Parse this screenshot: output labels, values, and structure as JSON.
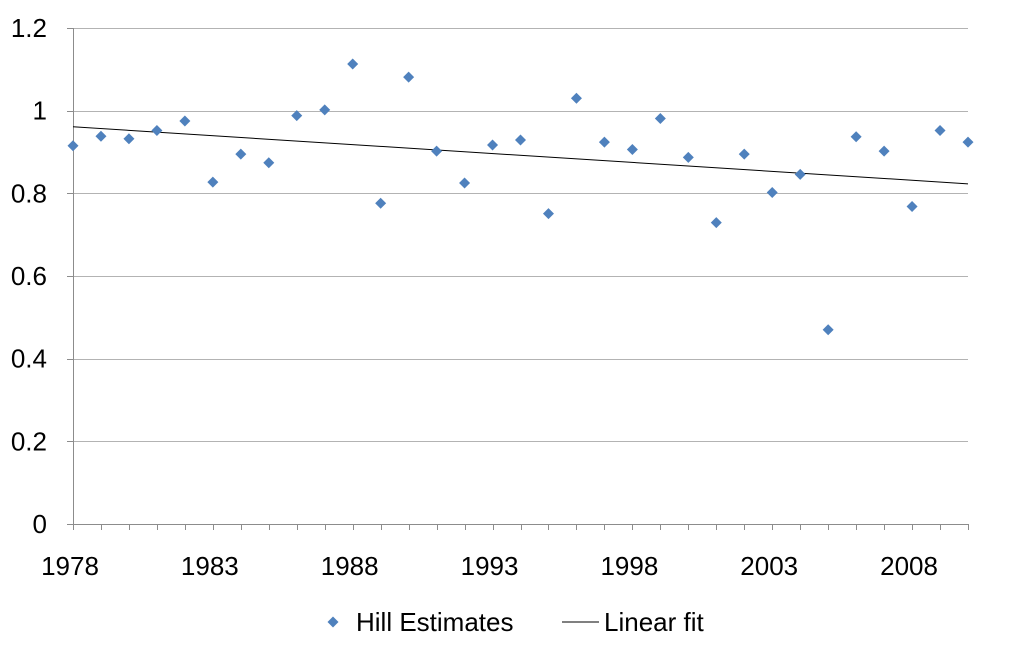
{
  "chart_data": {
    "type": "scatter",
    "title": "",
    "xlabel": "",
    "ylabel": "",
    "xlim": [
      1978,
      2010
    ],
    "ylim": [
      0,
      1.2
    ],
    "x_ticks": [
      1978,
      1983,
      1988,
      1993,
      1998,
      2003,
      2008
    ],
    "x_tick_labels": [
      "1978",
      "1983",
      "1988",
      "1993",
      "1998",
      "2003",
      "2008"
    ],
    "y_ticks": [
      0,
      0.2,
      0.4,
      0.6,
      0.8,
      1,
      1.2
    ],
    "y_tick_labels": [
      "0",
      "0.2",
      "0.4",
      "0.6",
      "0.8",
      "1",
      "1.2"
    ],
    "grid": "horizontal",
    "legend_position": "bottom",
    "series": [
      {
        "name": "Hill Estimates",
        "kind": "scatter",
        "marker": "diamond",
        "color": "#4f81bd",
        "x": [
          1978,
          1979,
          1980,
          1981,
          1982,
          1983,
          1984,
          1985,
          1986,
          1987,
          1988,
          1989,
          1990,
          1991,
          1992,
          1993,
          1994,
          1995,
          1996,
          1997,
          1998,
          1999,
          2000,
          2001,
          2002,
          2003,
          2004,
          2005,
          2006,
          2007,
          2008,
          2009,
          2010
        ],
        "y": [
          0.915,
          0.938,
          0.932,
          0.952,
          0.975,
          0.827,
          0.895,
          0.874,
          0.988,
          1.002,
          1.113,
          0.776,
          1.081,
          0.902,
          0.825,
          0.917,
          0.929,
          0.751,
          1.03,
          0.924,
          0.906,
          0.981,
          0.887,
          0.729,
          0.895,
          0.802,
          0.846,
          0.47,
          0.937,
          0.902,
          0.768,
          0.952,
          0.924
        ]
      },
      {
        "name": "Linear fit",
        "kind": "line",
        "color": "#000000",
        "x": [
          1978,
          2010
        ],
        "y": [
          0.961,
          0.823
        ]
      }
    ]
  }
}
